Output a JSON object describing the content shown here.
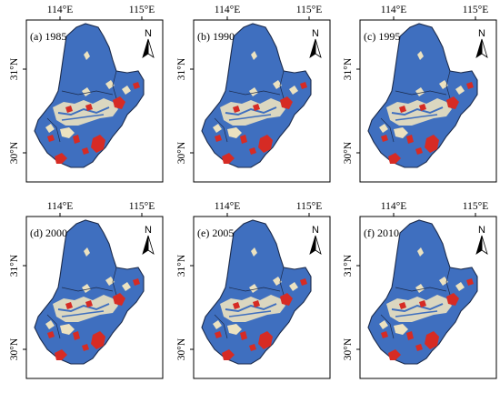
{
  "figure": {
    "panels": [
      {
        "label": "(a) 1985"
      },
      {
        "label": "(b) 1990"
      },
      {
        "label": "(c) 1995"
      },
      {
        "label": "(d) 2000"
      },
      {
        "label": "(e) 2005"
      },
      {
        "label": "(f) 2010"
      }
    ],
    "longitude_ticks": [
      "114°E",
      "115°E"
    ],
    "latitude_ticks": [
      "31°N",
      "30°N"
    ],
    "north_arrow_label": "N",
    "colors": {
      "land_base": "#3f6fbf",
      "urban_high": "#d62b24",
      "urban_mid": "#ece2c0",
      "boundary": "#1b2a4a"
    }
  }
}
